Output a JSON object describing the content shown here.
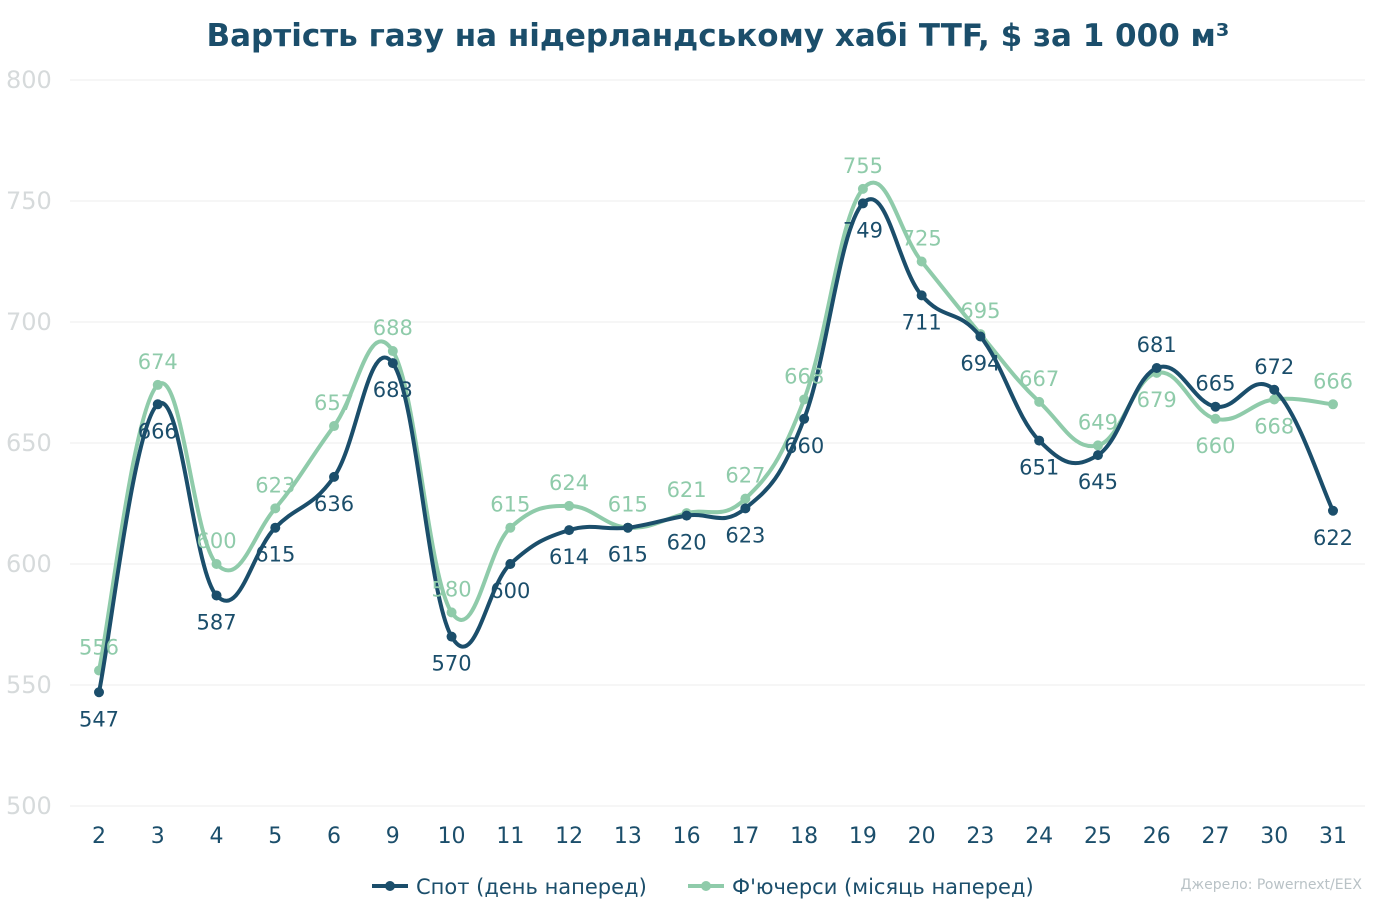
{
  "chart_data": {
    "type": "line",
    "title": "Вартість газу на нідерландському хабі TTF, $ за 1 000 м³",
    "categories": [
      "2",
      "3",
      "4",
      "5",
      "6",
      "9",
      "10",
      "11",
      "12",
      "13",
      "16",
      "17",
      "18",
      "19",
      "20",
      "23",
      "24",
      "25",
      "26",
      "27",
      "30",
      "31"
    ],
    "ylim": [
      500,
      800
    ],
    "yticks": [
      "500",
      "550",
      "600",
      "650",
      "700",
      "750",
      "800"
    ],
    "grid": true,
    "legend_position": "bottom",
    "series": [
      {
        "name": "Спот (день наперед)",
        "color": "#1b4e6b",
        "values": [
          547,
          666,
          587,
          615,
          636,
          683,
          570,
          600,
          614,
          615,
          620,
          623,
          660,
          749,
          711,
          694,
          651,
          645,
          681,
          665,
          672,
          622
        ],
        "labels": [
          "547",
          "666",
          "587",
          "615",
          "636",
          "683",
          "570",
          "600",
          "614",
          "615",
          "620",
          "623",
          "660",
          "749",
          "711",
          "694",
          "651",
          "645",
          "681",
          "665",
          "672",
          "622"
        ]
      },
      {
        "name": "Ф'ючерси (місяць наперед)",
        "color": "#8fcbaa",
        "values": [
          556,
          674,
          600,
          623,
          657,
          688,
          580,
          615,
          624,
          615,
          621,
          627,
          668,
          755,
          725,
          695,
          667,
          649,
          679,
          660,
          668,
          666
        ],
        "labels": [
          "556",
          "674",
          "600",
          "623",
          "657",
          "688",
          "580",
          "615",
          "624",
          "615",
          "621",
          "627",
          "668",
          "755",
          "725",
          "695",
          "667",
          "649",
          "679",
          "660",
          "668",
          "666"
        ]
      }
    ],
    "source": "Джерело: Powernext/EEX"
  }
}
